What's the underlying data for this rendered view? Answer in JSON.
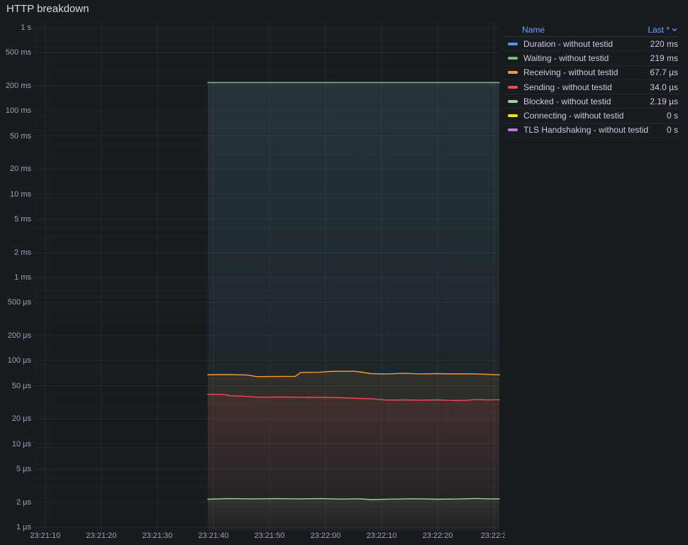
{
  "panel": {
    "title": "HTTP breakdown"
  },
  "colors": {
    "background": "#181b1f",
    "grid_major": "rgba(204,204,220,0.07)",
    "grid_minor": "rgba(204,204,220,0.035)",
    "axis_text": "rgba(204,204,220,0.75)",
    "legend_text": "#ccccdc",
    "header_link": "#6e9fff"
  },
  "legend": {
    "header_name": "Name",
    "header_last": "Last *",
    "sort_icon": "chevron-down",
    "rows": [
      {
        "label": "Duration - without testid",
        "value": "220 ms",
        "color": "#5794F2"
      },
      {
        "label": "Waiting - without testid",
        "value": "219 ms",
        "color": "#73BF69"
      },
      {
        "label": "Receiving - without testid",
        "value": "67.7 µs",
        "color": "#FF9830"
      },
      {
        "label": "Sending - without testid",
        "value": "34.0 µs",
        "color": "#F2495C"
      },
      {
        "label": "Blocked - without testid",
        "value": "2.19 µs",
        "color": "#96D98D"
      },
      {
        "label": "Connecting - without testid",
        "value": "0 s",
        "color": "#FADE2A"
      },
      {
        "label": "TLS Handshaking - without testid",
        "value": "0 s",
        "color": "#B877D9"
      }
    ]
  },
  "chart_data": {
    "type": "line",
    "title": "HTTP breakdown",
    "y_scale": "log10",
    "y_unit": "seconds",
    "y_range": [
      1e-06,
      1
    ],
    "x_unit": "seconds past 23:20:00",
    "x_range": [
      68,
      151
    ],
    "grid": true,
    "legend_position": "right",
    "y_ticks": [
      {
        "label": "1 s",
        "v": 1
      },
      {
        "label": "500 ms",
        "v": 0.5
      },
      {
        "label": "200 ms",
        "v": 0.2
      },
      {
        "label": "100 ms",
        "v": 0.1
      },
      {
        "label": "50 ms",
        "v": 0.05
      },
      {
        "label": "20 ms",
        "v": 0.02
      },
      {
        "label": "10 ms",
        "v": 0.01
      },
      {
        "label": "5 ms",
        "v": 0.005
      },
      {
        "label": "2 ms",
        "v": 0.002
      },
      {
        "label": "1 ms",
        "v": 0.001
      },
      {
        "label": "500 µs",
        "v": 0.0005
      },
      {
        "label": "200 µs",
        "v": 0.0002
      },
      {
        "label": "100 µs",
        "v": 0.0001
      },
      {
        "label": "50 µs",
        "v": 5e-05
      },
      {
        "label": "20 µs",
        "v": 2e-05
      },
      {
        "label": "10 µs",
        "v": 1e-05
      },
      {
        "label": "5 µs",
        "v": 5e-06
      },
      {
        "label": "2 µs",
        "v": 2e-06
      },
      {
        "label": "1 µs",
        "v": 1e-06
      }
    ],
    "x_ticks": [
      {
        "label": "23:21:10",
        "t": 70
      },
      {
        "label": "23:21:20",
        "t": 80
      },
      {
        "label": "23:21:30",
        "t": 90
      },
      {
        "label": "23:21:40",
        "t": 100
      },
      {
        "label": "23:21:50",
        "t": 110
      },
      {
        "label": "23:22:00",
        "t": 120
      },
      {
        "label": "23:22:10",
        "t": 130
      },
      {
        "label": "23:22:20",
        "t": 140
      },
      {
        "label": "23:22:3",
        "t": 150
      }
    ],
    "series": [
      {
        "name": "Duration - without testid",
        "color": "#5794F2",
        "last": "220 ms",
        "points": [
          [
            99,
            0.22
          ],
          [
            151,
            0.22
          ]
        ]
      },
      {
        "name": "Waiting - without testid",
        "color": "#73BF69",
        "last": "219 ms",
        "points": [
          [
            99,
            0.219
          ],
          [
            151,
            0.219
          ]
        ]
      },
      {
        "name": "Receiving - without testid",
        "color": "#FF9830",
        "last": "67.7 µs",
        "points": [
          [
            99,
            6.8e-05
          ],
          [
            103,
            6.83e-05
          ],
          [
            106,
            6.75e-05
          ],
          [
            107.8,
            6.45e-05
          ],
          [
            113,
            6.48e-05
          ],
          [
            114.6,
            6.48e-05
          ],
          [
            115.6,
            7.25e-05
          ],
          [
            119,
            7.3e-05
          ],
          [
            121,
            7.45e-05
          ],
          [
            125,
            7.48e-05
          ],
          [
            126.5,
            7.3e-05
          ],
          [
            128,
            7e-05
          ],
          [
            131,
            6.95e-05
          ],
          [
            134,
            7.05e-05
          ],
          [
            137,
            6.95e-05
          ],
          [
            140,
            7e-05
          ],
          [
            143,
            6.93e-05
          ],
          [
            146,
            6.98e-05
          ],
          [
            148.5,
            6.88e-05
          ],
          [
            151,
            6.77e-05
          ]
        ]
      },
      {
        "name": "Sending - without testid",
        "color": "#F2495C",
        "last": "34.0 µs",
        "points": [
          [
            99,
            3.95e-05
          ],
          [
            102,
            3.93e-05
          ],
          [
            103,
            3.79e-05
          ],
          [
            105.5,
            3.75e-05
          ],
          [
            108,
            3.65e-05
          ],
          [
            112,
            3.67e-05
          ],
          [
            116,
            3.64e-05
          ],
          [
            120,
            3.63e-05
          ],
          [
            123,
            3.59e-05
          ],
          [
            126,
            3.53e-05
          ],
          [
            128.5,
            3.48e-05
          ],
          [
            131,
            3.37e-05
          ],
          [
            134,
            3.39e-05
          ],
          [
            137,
            3.36e-05
          ],
          [
            140,
            3.39e-05
          ],
          [
            143,
            3.33e-05
          ],
          [
            145.5,
            3.36e-05
          ],
          [
            147,
            3.43e-05
          ],
          [
            149,
            3.38e-05
          ],
          [
            151,
            3.4e-05
          ]
        ]
      },
      {
        "name": "Blocked - without testid",
        "color": "#96D98D",
        "last": "2.19 µs",
        "points": [
          [
            99,
            2.17e-06
          ],
          [
            103,
            2.21e-06
          ],
          [
            107,
            2.19e-06
          ],
          [
            111,
            2.21e-06
          ],
          [
            115,
            2.19e-06
          ],
          [
            119,
            2.21e-06
          ],
          [
            123,
            2.18e-06
          ],
          [
            126,
            2.2e-06
          ],
          [
            128,
            2.15e-06
          ],
          [
            132,
            2.18e-06
          ],
          [
            136,
            2.2e-06
          ],
          [
            140,
            2.17e-06
          ],
          [
            144,
            2.19e-06
          ],
          [
            147,
            2.22e-06
          ],
          [
            149,
            2.19e-06
          ],
          [
            151,
            2.19e-06
          ]
        ]
      },
      {
        "name": "Connecting - without testid",
        "color": "#FADE2A",
        "last": "0 s",
        "points": []
      },
      {
        "name": "TLS Handshaking - without testid",
        "color": "#B877D9",
        "last": "0 s",
        "points": []
      }
    ]
  }
}
